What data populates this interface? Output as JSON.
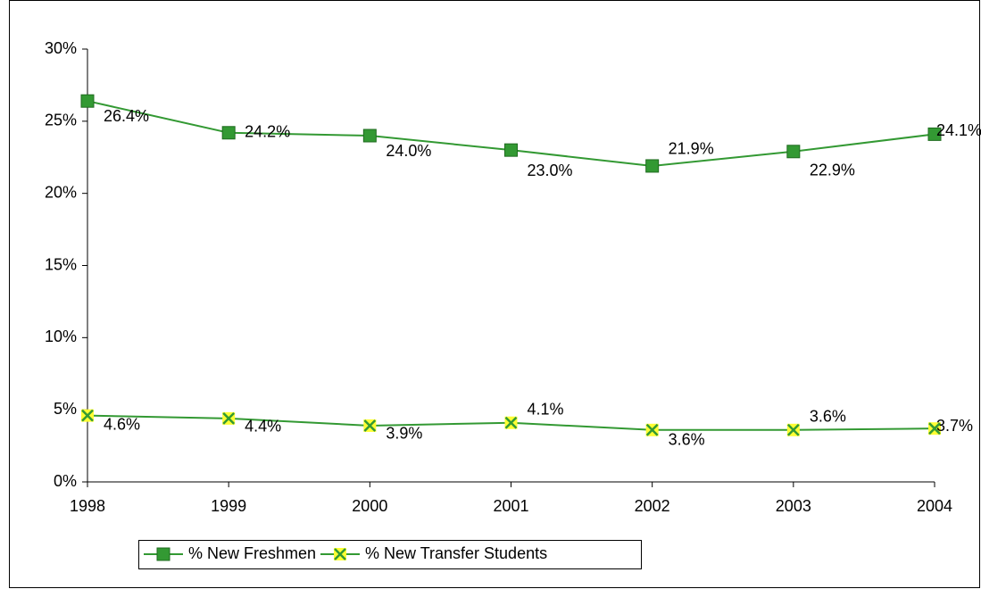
{
  "chart_data": {
    "type": "line",
    "categories": [
      "1998",
      "1999",
      "2000",
      "2001",
      "2002",
      "2003",
      "2004"
    ],
    "series": [
      {
        "name": "% New Freshmen",
        "color": "#339933",
        "marker": "square",
        "values": [
          26.4,
          24.2,
          24.0,
          23.0,
          21.9,
          22.9,
          24.1
        ],
        "value_labels": [
          "26.4%",
          "24.2%",
          "24.0%",
          "23.0%",
          "21.9%",
          "22.9%",
          "24.1%"
        ]
      },
      {
        "name": "% New Transfer Students",
        "color": "#339933",
        "marker": "x",
        "values": [
          4.6,
          4.4,
          3.9,
          4.1,
          3.6,
          3.6,
          3.7
        ],
        "value_labels": [
          "4.6%",
          "4.4%",
          "3.9%",
          "4.1%",
          "3.6%",
          "3.6%",
          "3.7%"
        ]
      }
    ],
    "ylim": [
      0,
      30
    ],
    "yticks": [
      {
        "value": 0,
        "label": "0%"
      },
      {
        "value": 5,
        "label": "5%"
      },
      {
        "value": 10,
        "label": "10%"
      },
      {
        "value": 15,
        "label": "15%"
      },
      {
        "value": 20,
        "label": "20%"
      },
      {
        "value": 25,
        "label": "25%"
      },
      {
        "value": 30,
        "label": "30%"
      }
    ],
    "grid": false,
    "legend": "bottom"
  }
}
